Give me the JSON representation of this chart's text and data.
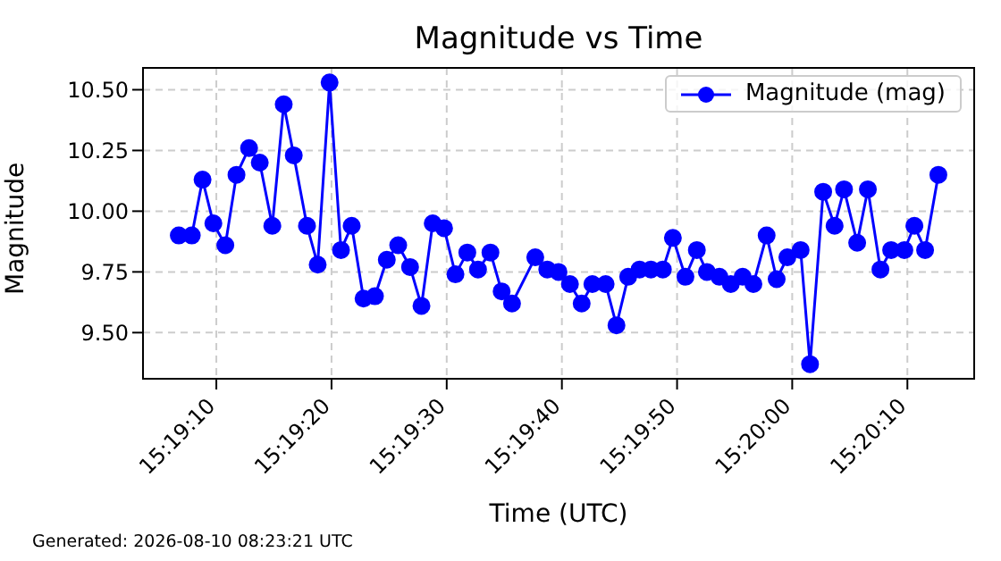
{
  "chart_data": {
    "type": "line",
    "title": "Magnitude vs Time",
    "xlabel": "Time (UTC)",
    "ylabel": "Magnitude",
    "annotations": [
      "Generated: 2026-08-10 08:23:21 UTC"
    ],
    "x": [
      15.318538,
      15.318852,
      15.319111,
      15.319372,
      15.319661,
      15.31993,
      15.320233,
      15.320491,
      15.320794,
      15.321069,
      15.321311,
      15.32163,
      15.321888,
      15.322175,
      15.32245,
      15.322708,
      15.322994,
      15.323269,
      15.323555,
      15.32383,
      15.324116,
      15.324391,
      15.324663,
      15.324936,
      15.325211,
      15.325497,
      15.325755,
      15.326055,
      15.326325,
      15.326575,
      15.327136,
      15.327425,
      15.327697,
      15.327972,
      15.328255,
      15.328513,
      15.328833,
      15.329094,
      15.329377,
      15.329652,
      15.329925,
      15.330213,
      15.330455,
      15.330758,
      15.331033,
      15.331275,
      15.331577,
      15.331852,
      15.332138,
      15.332397,
      15.332716,
      15.332958,
      15.333216,
      15.333536,
      15.333763,
      15.33408,
      15.334355,
      15.334583,
      15.3349,
      15.335158,
      15.335461,
      15.335719,
      15.336038,
      15.33628,
      15.336538,
      15.336858
    ],
    "series": [
      {
        "name": "Magnitude (mag)",
        "color": "#0000ff",
        "values": [
          9.9,
          9.9,
          10.13,
          9.95,
          9.86,
          10.15,
          10.26,
          10.2,
          9.94,
          10.44,
          10.23,
          9.94,
          9.78,
          10.53,
          9.84,
          9.94,
          9.64,
          9.65,
          9.8,
          9.86,
          9.77,
          9.61,
          9.95,
          9.93,
          9.74,
          9.83,
          9.76,
          9.83,
          9.67,
          9.62,
          9.81,
          9.76,
          9.75,
          9.7,
          9.62,
          9.7,
          9.7,
          9.53,
          9.73,
          9.76,
          9.76,
          9.76,
          9.89,
          9.73,
          9.84,
          9.75,
          9.73,
          9.7,
          9.73,
          9.7,
          9.9,
          9.72,
          9.81,
          9.84,
          9.37,
          10.08,
          9.94,
          10.09,
          9.87,
          10.09,
          9.76,
          9.84,
          9.84,
          9.94,
          9.84,
          10.15
        ]
      }
    ],
    "xlim": [
      15.317675,
      15.337722
    ],
    "xticks": [
      {
        "value": 15.319444,
        "label": "15:19:10"
      },
      {
        "value": 15.322222,
        "label": "15:19:20"
      },
      {
        "value": 15.325,
        "label": "15:19:30"
      },
      {
        "value": 15.327778,
        "label": "15:19:40"
      },
      {
        "value": 15.330556,
        "label": "15:19:50"
      },
      {
        "value": 15.333333,
        "label": "15:20:00"
      },
      {
        "value": 15.336111,
        "label": "15:20:10"
      }
    ],
    "ylim": [
      9.31,
      10.59
    ],
    "yticks": [
      {
        "value": 9.5,
        "label": "9.50"
      },
      {
        "value": 9.75,
        "label": "9.75"
      },
      {
        "value": 10,
        "label": "10.00"
      },
      {
        "value": 10.25,
        "label": "10.25"
      },
      {
        "value": 10.5,
        "label": "10.50"
      }
    ],
    "grid": true,
    "legend": "top right",
    "marker": "circle",
    "line_style": "solid"
  }
}
